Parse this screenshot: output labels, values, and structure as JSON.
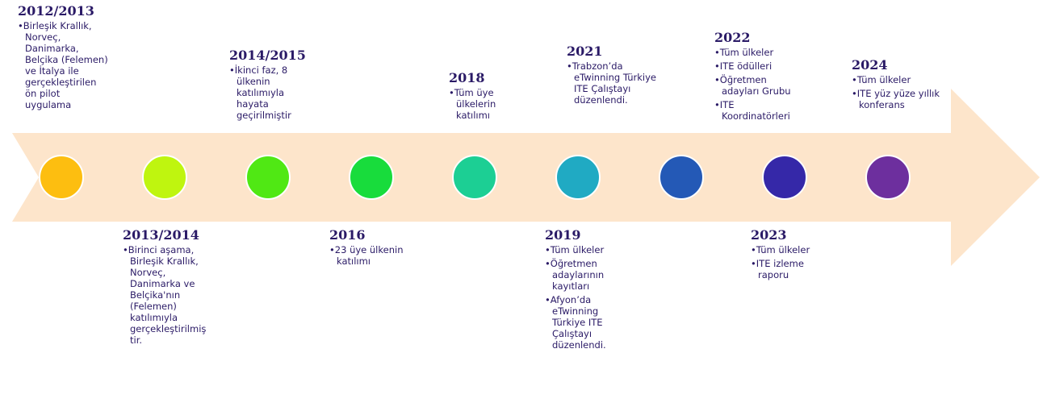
{
  "circle_colors": [
    "#fdbe10",
    "#bff50f",
    "#50e814",
    "#18dc3c",
    "#1ccf94",
    "#20aac3",
    "#2459b6",
    "#3528a8",
    "#6d2f9e"
  ],
  "events": [
    {
      "year": "2012/2013",
      "items": [
        "•Birleşik Krallık, Norveç, Danimarka, Belçika (Felemen) ve İtalya ile gerçekleştirilen ön pilot uygulama"
      ]
    },
    {
      "year": "2013/2014",
      "items": [
        "•Birinci aşama, Birleşik Krallık, Norveç, Danimarka ve Belçika'nın (Felemen) katılımıyla gerçekleştirilmiştir."
      ]
    },
    {
      "year": "2014/2015",
      "items": [
        "•İkinci faz, 8 ülkenin katılımıyla hayata geçirilmiştir"
      ]
    },
    {
      "year": "2016",
      "items": [
        "•23 üye ülkenin katılımı"
      ]
    },
    {
      "year": "2018",
      "items": [
        "•Tüm üye ülkelerin katılımı"
      ]
    },
    {
      "year": "2019",
      "items": [
        "•Tüm ülkeler",
        "•Öğretmen adaylarının kayıtları",
        "•Afyon’da eTwinning Türkiye ITE Çalıştayı düzenlendi."
      ]
    },
    {
      "year": "2021",
      "items": [
        "•Trabzon’da eTwinning Türkiye  ITE Çalıştayı düzenlendi."
      ]
    },
    {
      "year": "2022",
      "items": [
        "•Tüm ülkeler",
        "•ITE ödülleri",
        "•Öğretmen adayları Grubu",
        "•ITE Koordinatörleri"
      ]
    },
    {
      "year": "2023",
      "items": [
        "•Tüm ülkeler",
        "•ITE izleme raporu"
      ]
    },
    {
      "year": "2024",
      "items": [
        "•Tüm ülkeler",
        "•ITE yüz yüze yıllık konferans"
      ]
    }
  ]
}
